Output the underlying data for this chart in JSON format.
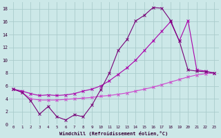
{
  "xlabel": "Windchill (Refroidissement éolien,°C)",
  "bg_color": "#cce8e8",
  "grid_color": "#aacccc",
  "xlim": [
    -0.5,
    23.5
  ],
  "ylim": [
    0,
    19
  ],
  "xticks": [
    0,
    1,
    2,
    3,
    4,
    5,
    6,
    7,
    8,
    9,
    10,
    11,
    12,
    13,
    14,
    15,
    16,
    17,
    18,
    19,
    20,
    21,
    22,
    23
  ],
  "yticks": [
    0,
    2,
    4,
    6,
    8,
    10,
    12,
    14,
    16,
    18
  ],
  "line1_x": [
    0,
    1,
    2,
    3,
    4,
    5,
    6,
    7,
    8,
    9,
    10,
    11,
    12,
    13,
    14,
    15,
    16,
    17,
    18,
    19,
    20,
    21,
    22,
    23
  ],
  "line1_y": [
    5.5,
    5.0,
    3.7,
    1.6,
    2.8,
    1.2,
    0.7,
    1.5,
    1.2,
    3.0,
    5.4,
    8.0,
    11.5,
    13.2,
    16.1,
    17.0,
    18.2,
    18.1,
    16.2,
    13.0,
    8.5,
    8.3,
    8.2,
    8.0
  ],
  "line2_x": [
    0,
    1,
    2,
    3,
    4,
    5,
    6,
    7,
    8,
    9,
    10,
    11,
    12,
    13,
    14,
    15,
    16,
    17,
    18,
    19,
    20,
    21,
    22,
    23
  ],
  "line2_y": [
    5.5,
    5.2,
    4.8,
    4.5,
    4.6,
    4.5,
    4.6,
    4.8,
    5.2,
    5.5,
    6.0,
    6.8,
    7.8,
    8.8,
    10.0,
    11.5,
    13.0,
    14.5,
    16.0,
    13.0,
    16.2,
    8.5,
    8.3,
    8.0
  ],
  "line3_x": [
    0,
    1,
    2,
    3,
    4,
    5,
    6,
    7,
    8,
    9,
    10,
    11,
    12,
    13,
    14,
    15,
    16,
    17,
    18,
    19,
    20,
    21,
    22,
    23
  ],
  "line3_y": [
    5.5,
    5.0,
    4.0,
    3.8,
    3.8,
    3.8,
    3.9,
    4.0,
    4.1,
    4.2,
    4.4,
    4.5,
    4.7,
    4.9,
    5.2,
    5.5,
    5.8,
    6.2,
    6.6,
    7.0,
    7.4,
    7.7,
    7.9,
    8.0
  ],
  "line1_color": "#770077",
  "line2_color": "#aa00aa",
  "line3_color": "#cc44cc"
}
